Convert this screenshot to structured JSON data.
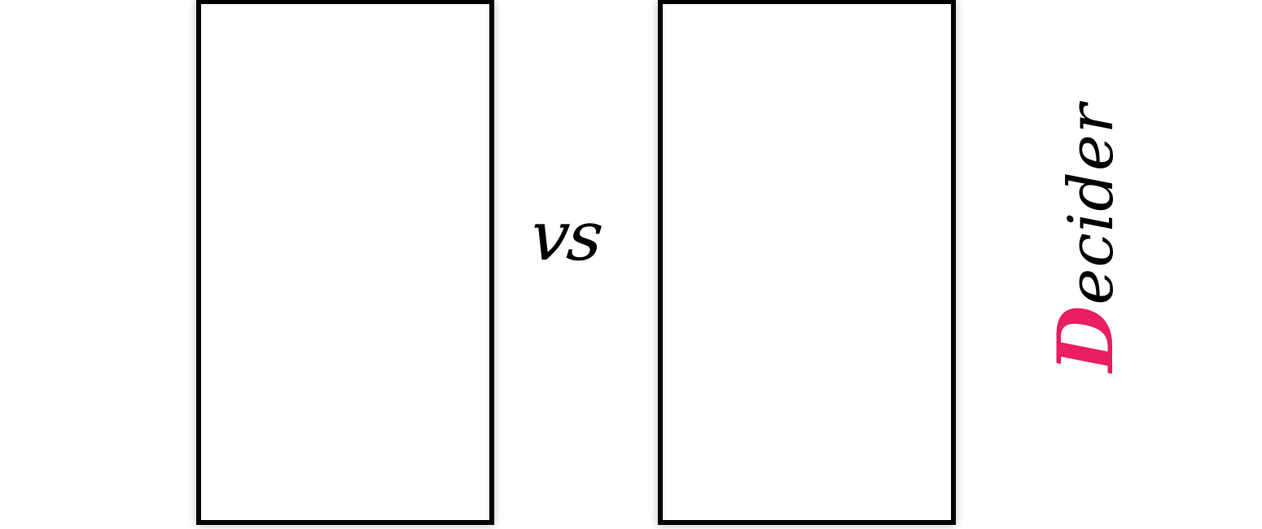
{
  "comparison": {
    "vs_label": "vs"
  },
  "brand": {
    "first_letter": "D",
    "rest": "ecider",
    "accent_color": "#e91e63",
    "text_color": "#000000"
  }
}
